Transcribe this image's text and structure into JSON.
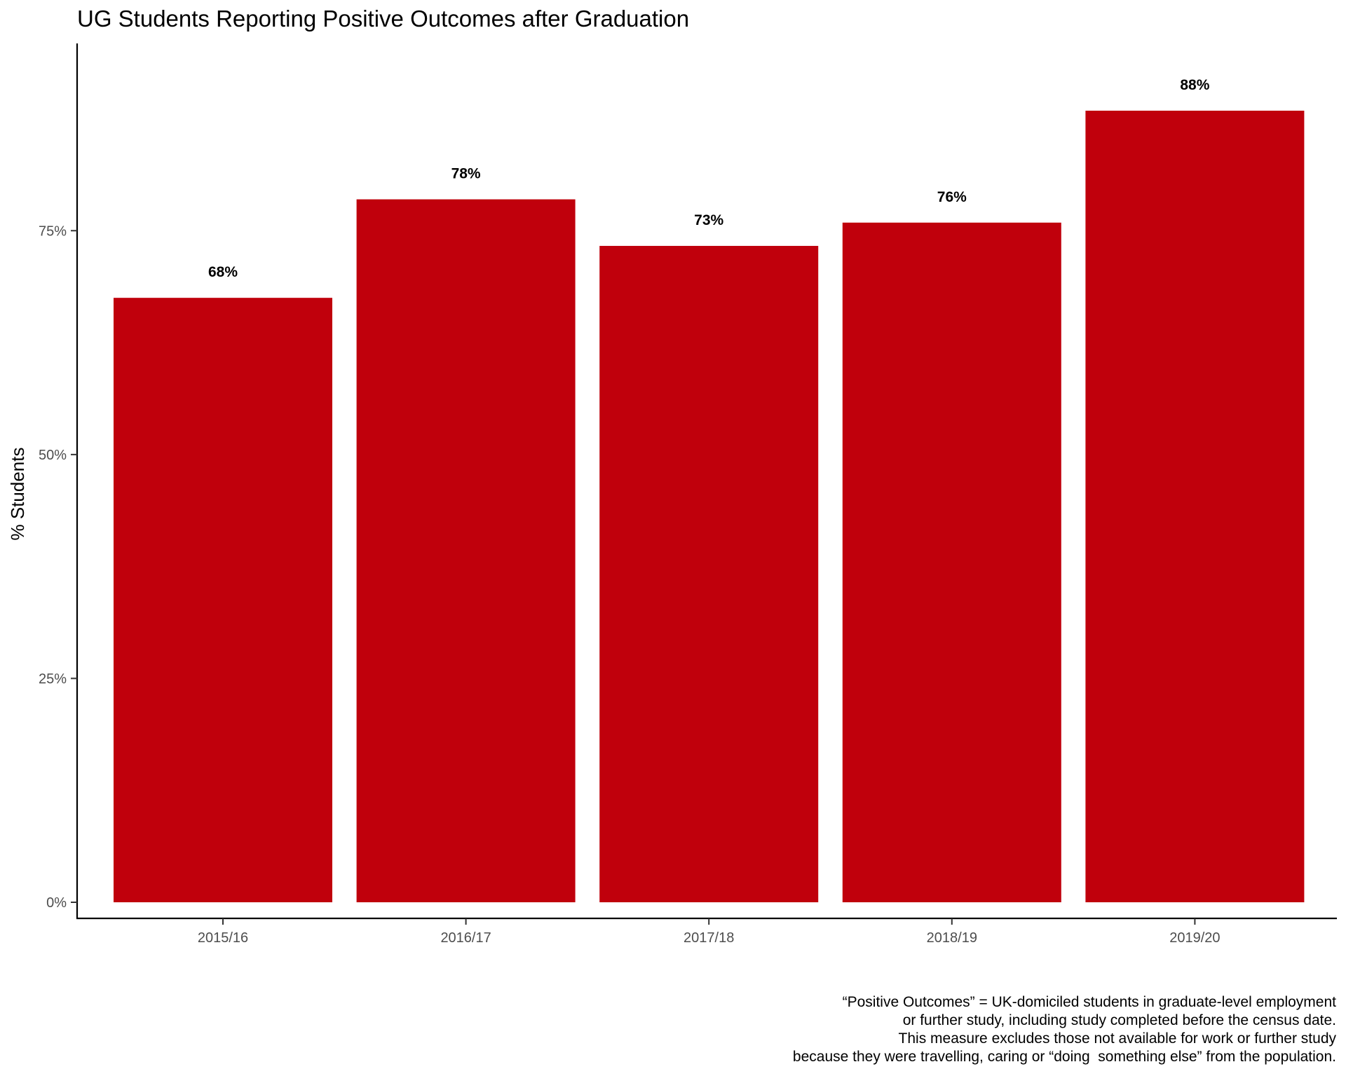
{
  "chart_data": {
    "type": "bar",
    "title": "UG Students Reporting Positive Outcomes after Graduation",
    "xlabel": "",
    "ylabel": "% Students",
    "categories": [
      "2015/16",
      "2016/17",
      "2017/18",
      "2018/19",
      "2019/20"
    ],
    "values": [
      67.5,
      78.5,
      73.3,
      75.9,
      88.4
    ],
    "data_labels": [
      "68%",
      "78%",
      "73%",
      "76%",
      "88%"
    ],
    "ylim": [
      0,
      88.4
    ],
    "yticks": [
      0,
      25,
      50,
      75
    ],
    "ytick_labels": [
      "0%",
      "25%",
      "50%",
      "75%"
    ],
    "bar_color": "#C0000C",
    "grid": false,
    "legend": "none"
  },
  "caption": {
    "lines": [
      "“Positive Outcomes” = UK-domiciled students in graduate-level employment",
      "or further study, including study completed before the census date.",
      "This measure excludes those not available for work or further study",
      "because they were travelling, caring or “doing  something else” from the population."
    ]
  }
}
